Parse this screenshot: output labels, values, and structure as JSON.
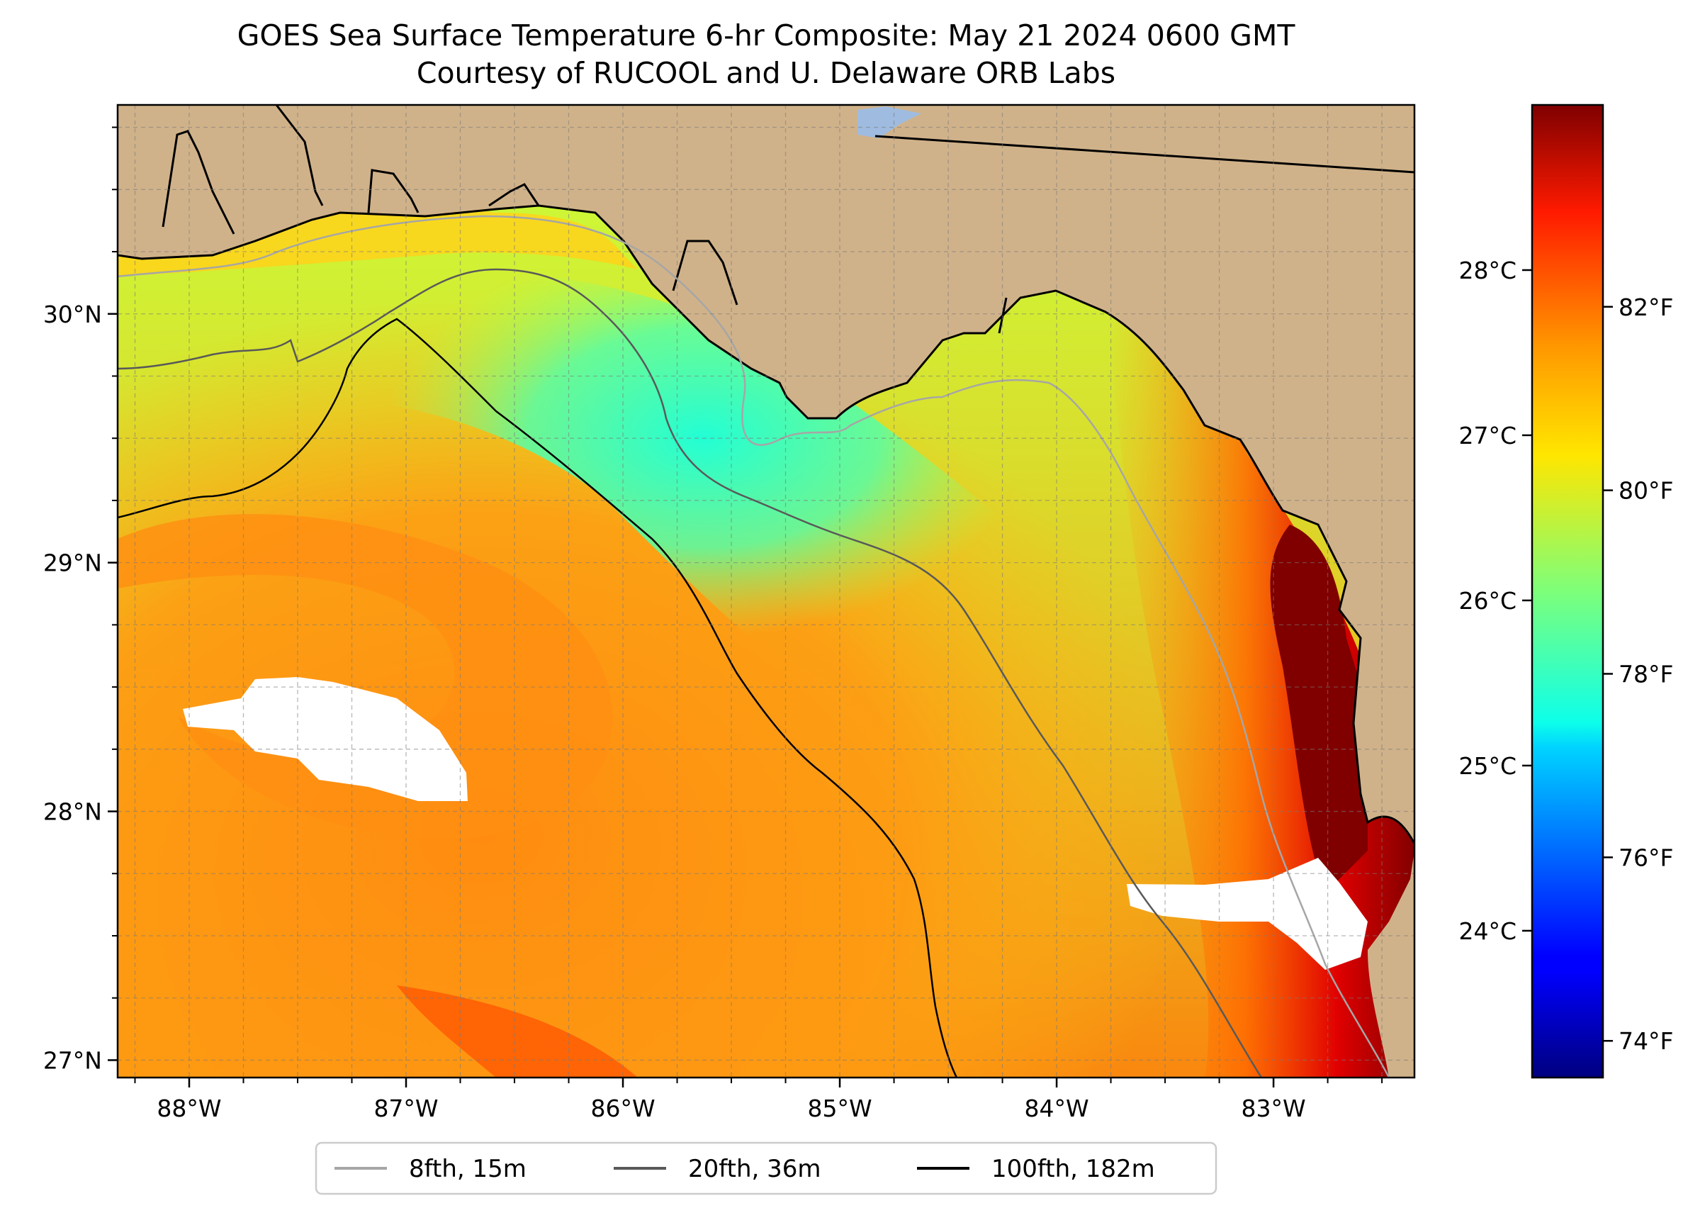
{
  "title": {
    "line1": "GOES Sea Surface Temperature 6-hr Composite: May 21 2024 0600 GMT",
    "line2": "Courtesy of RUCOOL and U. Delaware ORB Labs"
  },
  "map": {
    "lon_range": [
      -88.33,
      -82.35
    ],
    "lat_range": [
      26.93,
      30.84
    ],
    "lon_labels": [
      {
        "lon": -88,
        "label": "88°W"
      },
      {
        "lon": -87,
        "label": "87°W"
      },
      {
        "lon": -86,
        "label": "86°W"
      },
      {
        "lon": -85,
        "label": "85°W"
      },
      {
        "lon": -84,
        "label": "84°W"
      },
      {
        "lon": -83,
        "label": "83°W"
      }
    ],
    "lat_labels": [
      {
        "lat": 30,
        "label": "30°N"
      },
      {
        "lat": 29,
        "label": "29°N"
      },
      {
        "lat": 28,
        "label": "28°N"
      },
      {
        "lat": 27,
        "label": "27°N"
      }
    ],
    "grid": true,
    "land_color": "#d0b28a",
    "water_body_color": "#9fbce0",
    "no_data_color": "#ffffff"
  },
  "colorbar": {
    "celsius_ticks": [
      {
        "value": 28,
        "label": "28°C"
      },
      {
        "value": 27,
        "label": "27°C"
      },
      {
        "value": 26,
        "label": "26°C"
      },
      {
        "value": 25,
        "label": "25°C"
      },
      {
        "value": 24,
        "label": "24°C"
      }
    ],
    "fahrenheit_ticks": [
      {
        "value": 82,
        "label": "82°F"
      },
      {
        "value": 80,
        "label": "80°F"
      },
      {
        "value": 78,
        "label": "78°F"
      },
      {
        "value": 76,
        "label": "76°F"
      },
      {
        "value": 74,
        "label": "74°F"
      }
    ],
    "range_f": [
      73.6,
      84.2
    ],
    "colormap": "jet"
  },
  "legend": {
    "items": [
      {
        "label": "8fth, 15m",
        "color": "#a6a6a6"
      },
      {
        "label": "20fth, 36m",
        "color": "#595959"
      },
      {
        "label": "100fth, 182m",
        "color": "#000000"
      }
    ]
  }
}
